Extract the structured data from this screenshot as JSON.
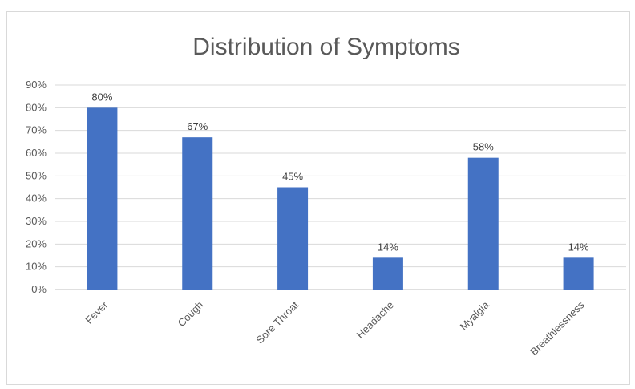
{
  "chart_data": {
    "type": "bar",
    "title": "Distribution of Symptoms",
    "categories": [
      "Fever",
      "Cough",
      "Sore Throat",
      "Headache",
      "Myalgia",
      "Breathlessness"
    ],
    "series": [
      {
        "values": [
          80,
          67,
          45,
          14,
          58,
          14
        ],
        "labels": [
          "80%",
          "67%",
          "45%",
          "14%",
          "58%",
          "14%"
        ]
      }
    ],
    "ylim": [
      0,
      90
    ],
    "yticks": [
      "0%",
      "10%",
      "20%",
      "30%",
      "40%",
      "50%",
      "60%",
      "70%",
      "80%",
      "90%"
    ],
    "grid": true,
    "legend": "none",
    "bar_color": "#4472c4"
  }
}
